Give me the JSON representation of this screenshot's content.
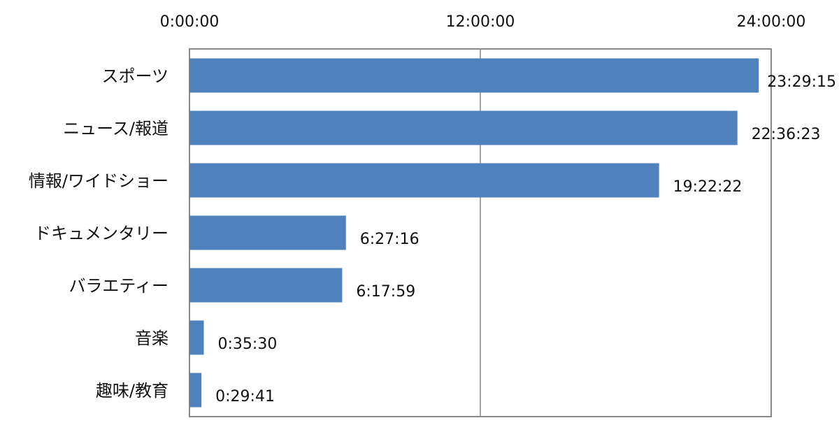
{
  "chart_data": {
    "type": "bar",
    "orientation": "horizontal",
    "title": "",
    "xlabel": "",
    "ylabel": "",
    "x_axis_position": "top",
    "xlim": [
      0,
      86400
    ],
    "x_ticks": [
      {
        "value": 0,
        "label": "0:00:00"
      },
      {
        "value": 43200,
        "label": "12:00:00"
      },
      {
        "value": 86400,
        "label": "24:00:00"
      }
    ],
    "grid": {
      "vertical": true,
      "horizontal": false
    },
    "legend": "none",
    "bar_color": "#4F81BD",
    "categories": [
      "スポーツ",
      "ニュース/報道",
      "情報/ワイドショー",
      "ドキュメンタリー",
      "バラエティー",
      "音楽",
      "趣味/教育"
    ],
    "values": [
      84555,
      81383,
      69742,
      23236,
      22679,
      2130,
      1781
    ],
    "value_labels": [
      "23:29:15",
      "22:36:23",
      "19:22:22",
      "6:27:16",
      "6:17:59",
      "0:35:30",
      "0:29:41"
    ]
  }
}
